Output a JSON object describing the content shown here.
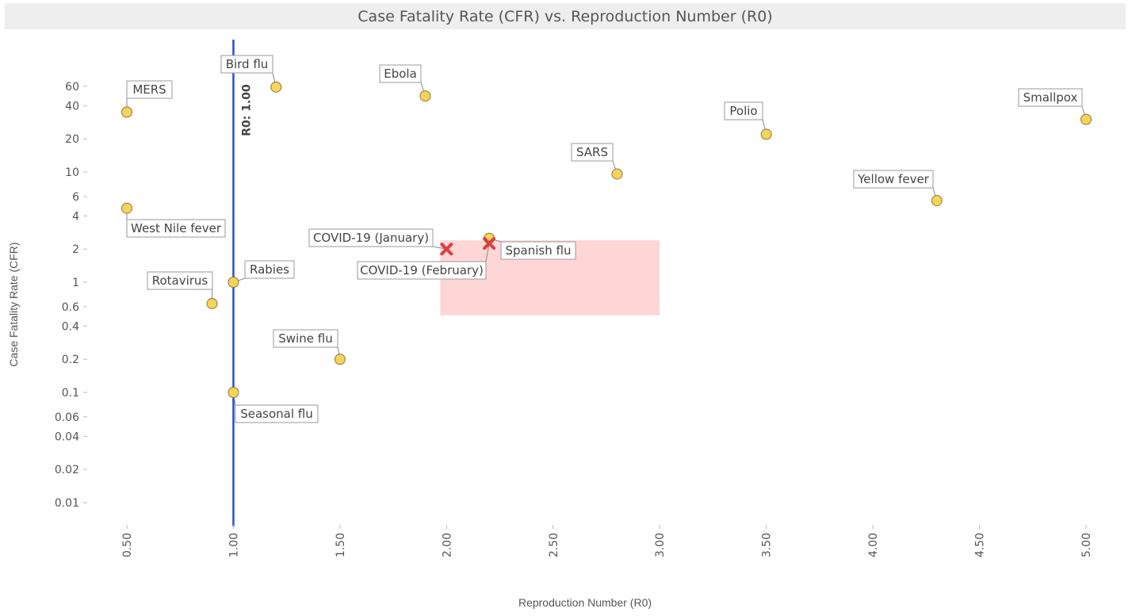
{
  "chart_data": {
    "type": "scatter",
    "title": "Case Fatality Rate (CFR) vs. Reproduction Number (R0)",
    "xlabel": "Reproduction Number (R0)",
    "ylabel": "Case Fatality Rate (CFR)",
    "x_scale": "linear",
    "y_scale": "log",
    "xlim": [
      0.5,
      5.0
    ],
    "ylim": [
      0.01,
      100
    ],
    "x_ticks": [
      "0.50",
      "1.00",
      "1.50",
      "2.00",
      "2.50",
      "3.00",
      "3.50",
      "4.00",
      "4.50",
      "5.00"
    ],
    "y_ticks": [
      "60",
      "40",
      "20",
      "10",
      "6",
      "4",
      "2",
      "1",
      "0.6",
      "0.4",
      "0.2",
      "0.1",
      "0.06",
      "0.04",
      "0.02",
      "0.01"
    ],
    "grid": false,
    "reference_line": {
      "x": 1.0,
      "label": "R0: 1.00",
      "color": "#2a4fc4"
    },
    "highlight_region": {
      "x": [
        2.0,
        3.0
      ],
      "y": [
        0.5,
        2.4
      ],
      "color": "#ffd6d6"
    },
    "colors": {
      "point": "#f6d35b",
      "covid": "#d94040",
      "title_bg": "#eeeeee"
    },
    "points": [
      {
        "label": "MERS",
        "x": 0.5,
        "y": 35,
        "marker": "circle"
      },
      {
        "label": "West Nile fever",
        "x": 0.5,
        "y": 4.7,
        "marker": "circle"
      },
      {
        "label": "Bird flu",
        "x": 1.2,
        "y": 59,
        "marker": "circle"
      },
      {
        "label": "Ebola",
        "x": 1.9,
        "y": 49,
        "marker": "circle"
      },
      {
        "label": "Rabies",
        "x": 1.0,
        "y": 1.0,
        "marker": "circle"
      },
      {
        "label": "Rotavirus",
        "x": 0.9,
        "y": 0.64,
        "marker": "circle"
      },
      {
        "label": "Seasonal flu",
        "x": 1.0,
        "y": 0.1,
        "marker": "circle"
      },
      {
        "label": "Swine flu",
        "x": 1.5,
        "y": 0.2,
        "marker": "circle"
      },
      {
        "label": "Spanish flu",
        "x": 2.2,
        "y": 2.5,
        "marker": "circle"
      },
      {
        "label": "COVID-19 (January)",
        "x": 2.0,
        "y": 2.0,
        "marker": "cross"
      },
      {
        "label": "COVID-19 (February)",
        "x": 2.2,
        "y": 2.25,
        "marker": "cross"
      },
      {
        "label": "SARS",
        "x": 2.8,
        "y": 9.6,
        "marker": "circle"
      },
      {
        "label": "Polio",
        "x": 3.5,
        "y": 22,
        "marker": "circle"
      },
      {
        "label": "Yellow fever",
        "x": 4.3,
        "y": 5.5,
        "marker": "circle"
      },
      {
        "label": "Smallpox",
        "x": 5.0,
        "y": 30,
        "marker": "circle"
      }
    ]
  }
}
